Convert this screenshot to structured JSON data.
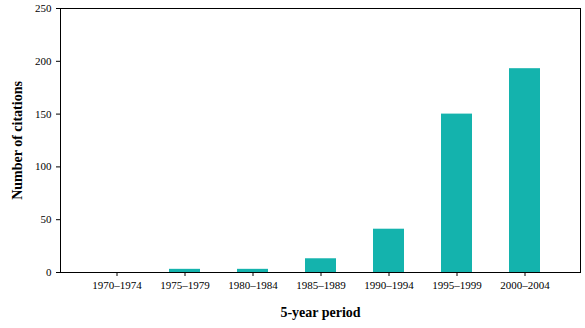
{
  "chart_data": {
    "type": "bar",
    "categories": [
      "1970–1974",
      "1975–1979",
      "1980–1984",
      "1985–1989",
      "1990–1994",
      "1995–1999",
      "2000–2004"
    ],
    "values": [
      0,
      3,
      3,
      13,
      41,
      150,
      193
    ],
    "color": "#14b3ad",
    "xlabel": "5-year period",
    "ylabel": "Number of citations",
    "ylim": [
      0,
      250
    ],
    "yticks": [
      0,
      50,
      100,
      150,
      200,
      250
    ],
    "grid": false
  }
}
